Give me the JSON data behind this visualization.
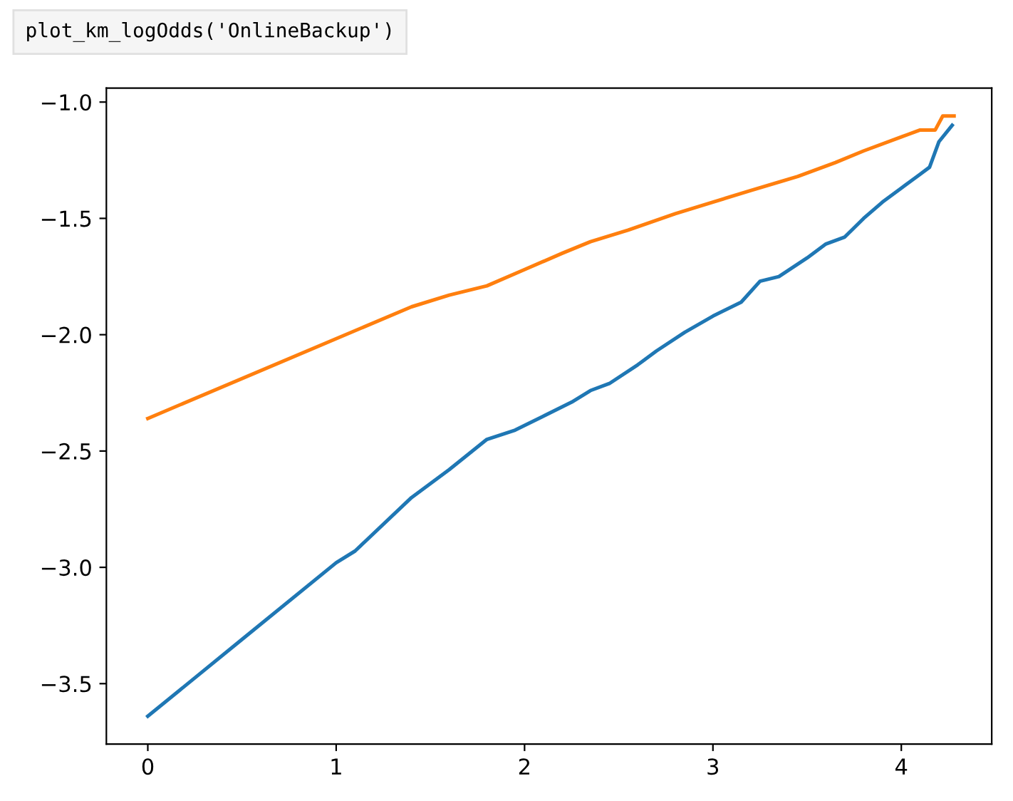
{
  "chart_data": {
    "type": "line",
    "annotations": [
      "plot_km_logOdds('OnlineBackup')"
    ],
    "xlim": [
      -0.22,
      4.48
    ],
    "xticks": [
      0,
      1,
      2,
      3,
      4
    ],
    "ylim": [
      -3.76,
      -0.94
    ],
    "yticks": [
      {
        "value": -3.5,
        "label": "−3.5"
      },
      {
        "value": -3.0,
        "label": "−3.0"
      },
      {
        "value": -2.5,
        "label": "−2.5"
      },
      {
        "value": -2.0,
        "label": "−2.0"
      },
      {
        "value": -1.5,
        "label": "−1.5"
      },
      {
        "value": -1.0,
        "label": "−1.0"
      }
    ],
    "grid": false,
    "series": [
      {
        "color": "#1f77b4",
        "x": [
          0,
          0.5,
          1.0,
          1.1,
          1.4,
          1.6,
          1.8,
          1.95,
          2.1,
          2.25,
          2.35,
          2.45,
          2.6,
          2.7,
          2.85,
          3.0,
          3.15,
          3.25,
          3.35,
          3.5,
          3.6,
          3.7,
          3.8,
          3.9,
          4.0,
          4.1,
          4.15,
          4.2,
          4.27
        ],
        "values": [
          -3.64,
          -3.31,
          -2.98,
          -2.93,
          -2.7,
          -2.58,
          -2.45,
          -2.41,
          -2.35,
          -2.29,
          -2.24,
          -2.21,
          -2.13,
          -2.07,
          -1.99,
          -1.92,
          -1.86,
          -1.77,
          -1.75,
          -1.67,
          -1.61,
          -1.58,
          -1.5,
          -1.43,
          -1.37,
          -1.31,
          -1.28,
          -1.17,
          -1.1
        ]
      },
      {
        "color": "#ff7f0e",
        "x": [
          0,
          1.4,
          1.6,
          1.8,
          2.0,
          2.2,
          2.35,
          2.55,
          2.8,
          3.0,
          3.2,
          3.45,
          3.65,
          3.8,
          4.0,
          4.1,
          4.18,
          4.22,
          4.28
        ],
        "values": [
          -2.36,
          -1.88,
          -1.83,
          -1.79,
          -1.72,
          -1.65,
          -1.6,
          -1.55,
          -1.48,
          -1.43,
          -1.38,
          -1.32,
          -1.26,
          -1.21,
          -1.15,
          -1.12,
          -1.12,
          -1.06,
          -1.06
        ]
      }
    ]
  }
}
